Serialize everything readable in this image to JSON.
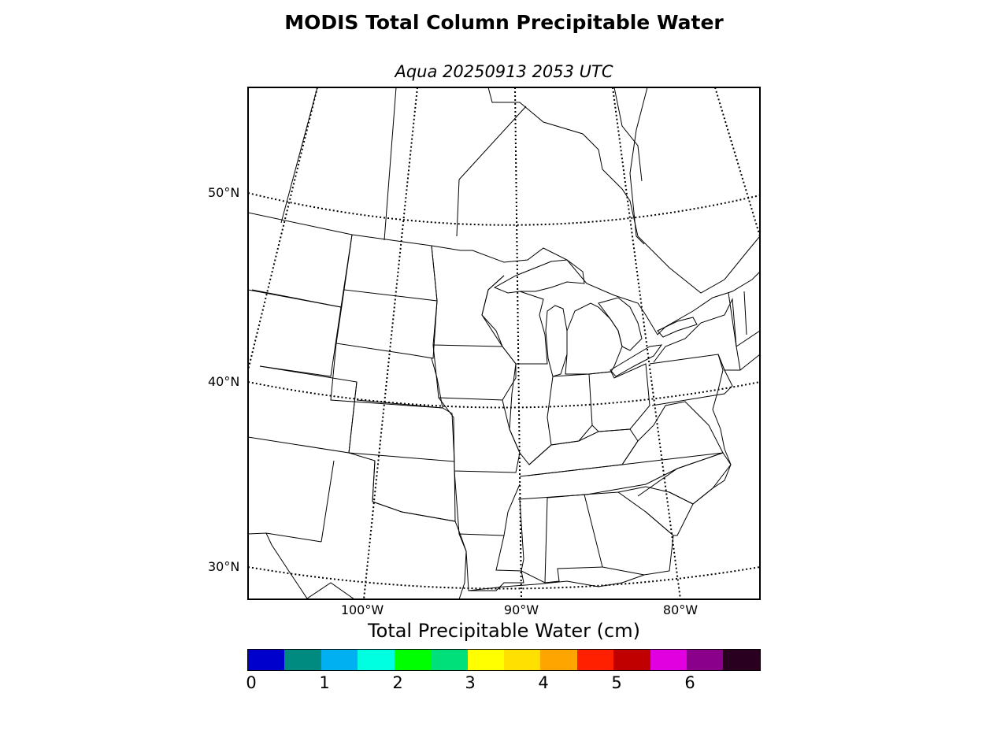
{
  "title": "MODIS Total Column Precipitable Water",
  "subtitle": "Aqua 20250913 2053 UTC",
  "map": {
    "projection": "lambert-conformal",
    "region": "Great Lakes / Eastern and Central United States",
    "latitude_labels": [
      "50°N",
      "40°N",
      "30°N"
    ],
    "longitude_labels": [
      "100°W",
      "90°W",
      "80°W"
    ],
    "graticule_style": "dotted",
    "data_field": "none visible"
  },
  "colorbar": {
    "label": "Total Precipitable Water (cm)",
    "ticks": [
      "0",
      "1",
      "2",
      "3",
      "4",
      "5",
      "6"
    ],
    "range": [
      0,
      7
    ],
    "step": 0.5,
    "colors": [
      "#0000cd",
      "#008b80",
      "#00b0f0",
      "#00ffe0",
      "#00ff00",
      "#00e07a",
      "#ffff00",
      "#ffe000",
      "#ffa500",
      "#ff2000",
      "#c00000",
      "#e000e0",
      "#8b008b",
      "#2a0020"
    ]
  }
}
